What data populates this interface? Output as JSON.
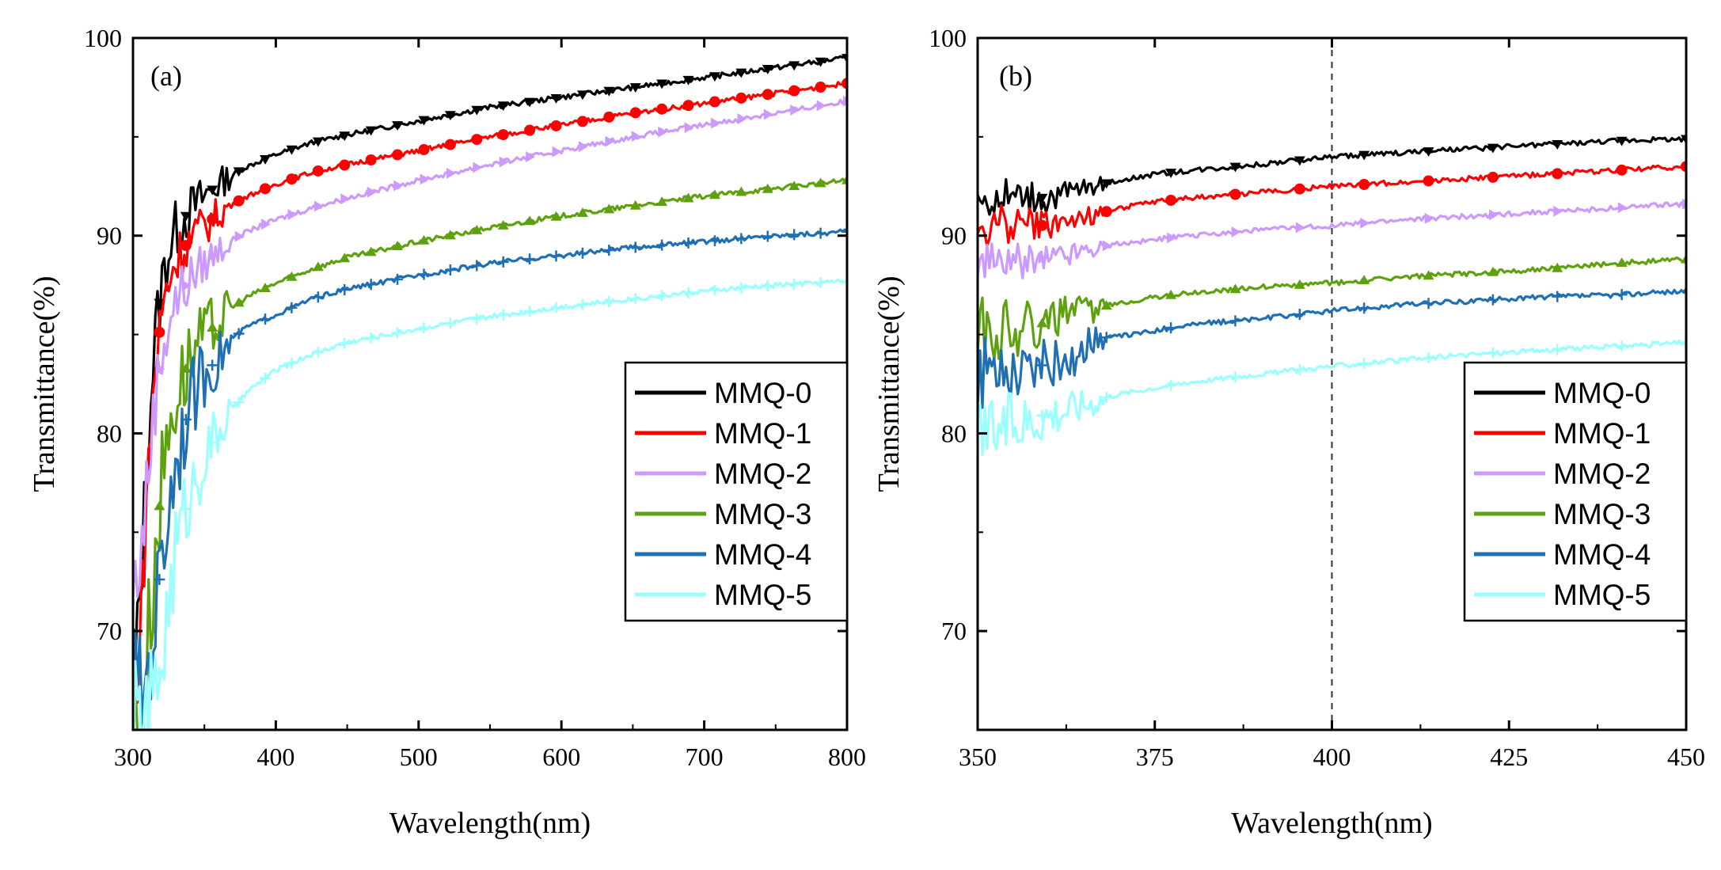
{
  "chart_data": [
    {
      "type": "line",
      "panel_label": "(a)",
      "xlabel": "Wavelength(nm)",
      "ylabel": "Transmittance(%)",
      "xlim": [
        300,
        800
      ],
      "ylim": [
        65,
        100
      ],
      "xticks": [
        300,
        400,
        500,
        600,
        700,
        800
      ],
      "yticks": [
        70,
        80,
        90,
        100
      ],
      "legend_position": "bottom-right",
      "series": [
        {
          "name": "MMQ-0",
          "color": "#000000",
          "marker": "triangle-down",
          "markers": 27,
          "x": [
            300,
            305,
            310,
            315,
            320,
            325,
            330,
            340,
            350,
            360,
            370,
            380,
            400,
            425,
            450,
            500,
            550,
            600,
            650,
            700,
            750,
            800
          ],
          "y": [
            66,
            72,
            79,
            84.5,
            87.5,
            89.3,
            90.3,
            91.3,
            92.0,
            92.6,
            93.1,
            93.5,
            94.1,
            94.7,
            95.1,
            95.8,
            96.5,
            97.0,
            97.5,
            98.0,
            98.5,
            99.0
          ]
        },
        {
          "name": "MMQ-1",
          "color": "#ff0000",
          "marker": "circle",
          "markers": 27,
          "x": [
            300,
            305,
            310,
            315,
            320,
            325,
            330,
            340,
            350,
            360,
            370,
            380,
            400,
            425,
            450,
            500,
            550,
            600,
            650,
            700,
            750,
            800
          ],
          "y": [
            65.5,
            70,
            77.5,
            83,
            86,
            87.8,
            88.8,
            89.8,
            90.5,
            91.1,
            91.6,
            92.0,
            92.6,
            93.2,
            93.6,
            94.3,
            95.0,
            95.6,
            96.2,
            96.7,
            97.2,
            97.7
          ]
        },
        {
          "name": "MMQ-2",
          "color": "#cc99ff",
          "marker": "triangle-right",
          "markers": 27,
          "x": [
            300,
            305,
            310,
            315,
            320,
            325,
            330,
            340,
            350,
            360,
            370,
            380,
            400,
            425,
            450,
            500,
            550,
            600,
            650,
            700,
            750,
            800
          ],
          "y": [
            72,
            73.5,
            77.5,
            81.5,
            84,
            85.7,
            86.7,
            87.8,
            88.6,
            89.3,
            89.8,
            90.2,
            90.8,
            91.4,
            91.9,
            92.8,
            93.6,
            94.3,
            95.0,
            95.6,
            96.2,
            96.8
          ]
        },
        {
          "name": "MMQ-3",
          "color": "#5ea10e",
          "marker": "triangle-up",
          "markers": 27,
          "x": [
            300,
            305,
            310,
            315,
            320,
            325,
            330,
            340,
            350,
            360,
            370,
            380,
            400,
            425,
            450,
            500,
            550,
            600,
            650,
            700,
            750,
            800
          ],
          "y": [
            65,
            66,
            69,
            73.5,
            77.5,
            80.3,
            82.0,
            83.8,
            84.9,
            85.7,
            86.4,
            86.9,
            87.6,
            88.3,
            88.9,
            89.7,
            90.4,
            91.0,
            91.5,
            92.0,
            92.4,
            92.8
          ]
        },
        {
          "name": "MMQ-4",
          "color": "#1f6fb5",
          "marker": "plus",
          "markers": 27,
          "x": [
            300,
            305,
            310,
            315,
            320,
            325,
            330,
            340,
            350,
            360,
            370,
            380,
            400,
            425,
            450,
            500,
            550,
            600,
            650,
            700,
            750,
            800
          ],
          "y": [
            67.5,
            66.5,
            68,
            70.5,
            73.5,
            76.5,
            78.8,
            81.5,
            83.0,
            83.8,
            84.8,
            85.4,
            86.0,
            86.8,
            87.3,
            88.0,
            88.6,
            89.0,
            89.4,
            89.7,
            90.0,
            90.2
          ]
        },
        {
          "name": "MMQ-5",
          "color": "#99ffff",
          "marker": "plus",
          "markers": 27,
          "x": [
            300,
            305,
            310,
            315,
            320,
            325,
            330,
            340,
            350,
            360,
            370,
            380,
            400,
            425,
            450,
            500,
            550,
            600,
            650,
            700,
            750,
            800
          ],
          "y": [
            65,
            65,
            65.5,
            66.5,
            68.5,
            71.5,
            74.2,
            77.0,
            78.8,
            80.1,
            81.2,
            82.1,
            83.2,
            84.0,
            84.6,
            85.3,
            85.9,
            86.4,
            86.8,
            87.2,
            87.5,
            87.7
          ]
        }
      ]
    },
    {
      "type": "line",
      "panel_label": "(b)",
      "xlabel": "Wavelength(nm)",
      "ylabel": "Transmittance(%)",
      "xlim": [
        350,
        450
      ],
      "ylim": [
        65,
        100
      ],
      "xticks": [
        350,
        375,
        400,
        425,
        450
      ],
      "yticks": [
        70,
        80,
        90,
        100
      ],
      "reference_line_x": 400,
      "legend_position": "bottom-right",
      "series": [
        {
          "name": "MMQ-0",
          "color": "#000000",
          "marker": "triangle-down",
          "markers": 11,
          "x": [
            350,
            355,
            360,
            365,
            370,
            375,
            380,
            390,
            400,
            410,
            420,
            430,
            440,
            450
          ],
          "y": [
            91.8,
            92.0,
            91.9,
            92.4,
            92.8,
            93.1,
            93.3,
            93.6,
            94.0,
            94.2,
            94.4,
            94.6,
            94.8,
            94.9
          ]
        },
        {
          "name": "MMQ-1",
          "color": "#ff0000",
          "marker": "circle",
          "markers": 11,
          "x": [
            350,
            355,
            360,
            365,
            370,
            375,
            380,
            390,
            400,
            410,
            420,
            430,
            440,
            450
          ],
          "y": [
            90.2,
            90.6,
            90.5,
            90.9,
            91.4,
            91.7,
            91.9,
            92.2,
            92.5,
            92.7,
            92.9,
            93.1,
            93.3,
            93.5
          ]
        },
        {
          "name": "MMQ-2",
          "color": "#cc99ff",
          "marker": "triangle-right",
          "markers": 11,
          "x": [
            350,
            355,
            360,
            365,
            370,
            375,
            380,
            390,
            400,
            410,
            420,
            430,
            440,
            450
          ],
          "y": [
            88.4,
            88.7,
            88.9,
            89.3,
            89.6,
            89.8,
            90.0,
            90.3,
            90.5,
            90.8,
            91.0,
            91.2,
            91.4,
            91.6
          ]
        },
        {
          "name": "MMQ-3",
          "color": "#5ea10e",
          "marker": "triangle-up",
          "markers": 11,
          "x": [
            350,
            355,
            360,
            365,
            370,
            375,
            380,
            390,
            400,
            410,
            420,
            430,
            440,
            450
          ],
          "y": [
            85.2,
            85.4,
            85.6,
            86.2,
            86.6,
            86.9,
            87.1,
            87.4,
            87.6,
            87.9,
            88.1,
            88.3,
            88.6,
            88.8
          ]
        },
        {
          "name": "MMQ-4",
          "color": "#1f6fb5",
          "marker": "plus",
          "markers": 11,
          "x": [
            350,
            355,
            360,
            364,
            366,
            370,
            375,
            380,
            390,
            400,
            410,
            420,
            430,
            440,
            450
          ],
          "y": [
            82.9,
            83.2,
            83.5,
            83.7,
            84.8,
            84.9,
            85.2,
            85.5,
            85.8,
            86.2,
            86.5,
            86.7,
            86.9,
            87.0,
            87.2
          ]
        },
        {
          "name": "MMQ-5",
          "color": "#99ffff",
          "marker": "plus",
          "markers": 11,
          "x": [
            350,
            355,
            360,
            365,
            370,
            375,
            380,
            390,
            400,
            410,
            420,
            430,
            440,
            450
          ],
          "y": [
            79.8,
            80.5,
            81.0,
            81.5,
            82.0,
            82.3,
            82.6,
            83.0,
            83.4,
            83.7,
            84.0,
            84.2,
            84.4,
            84.6
          ]
        }
      ]
    }
  ]
}
